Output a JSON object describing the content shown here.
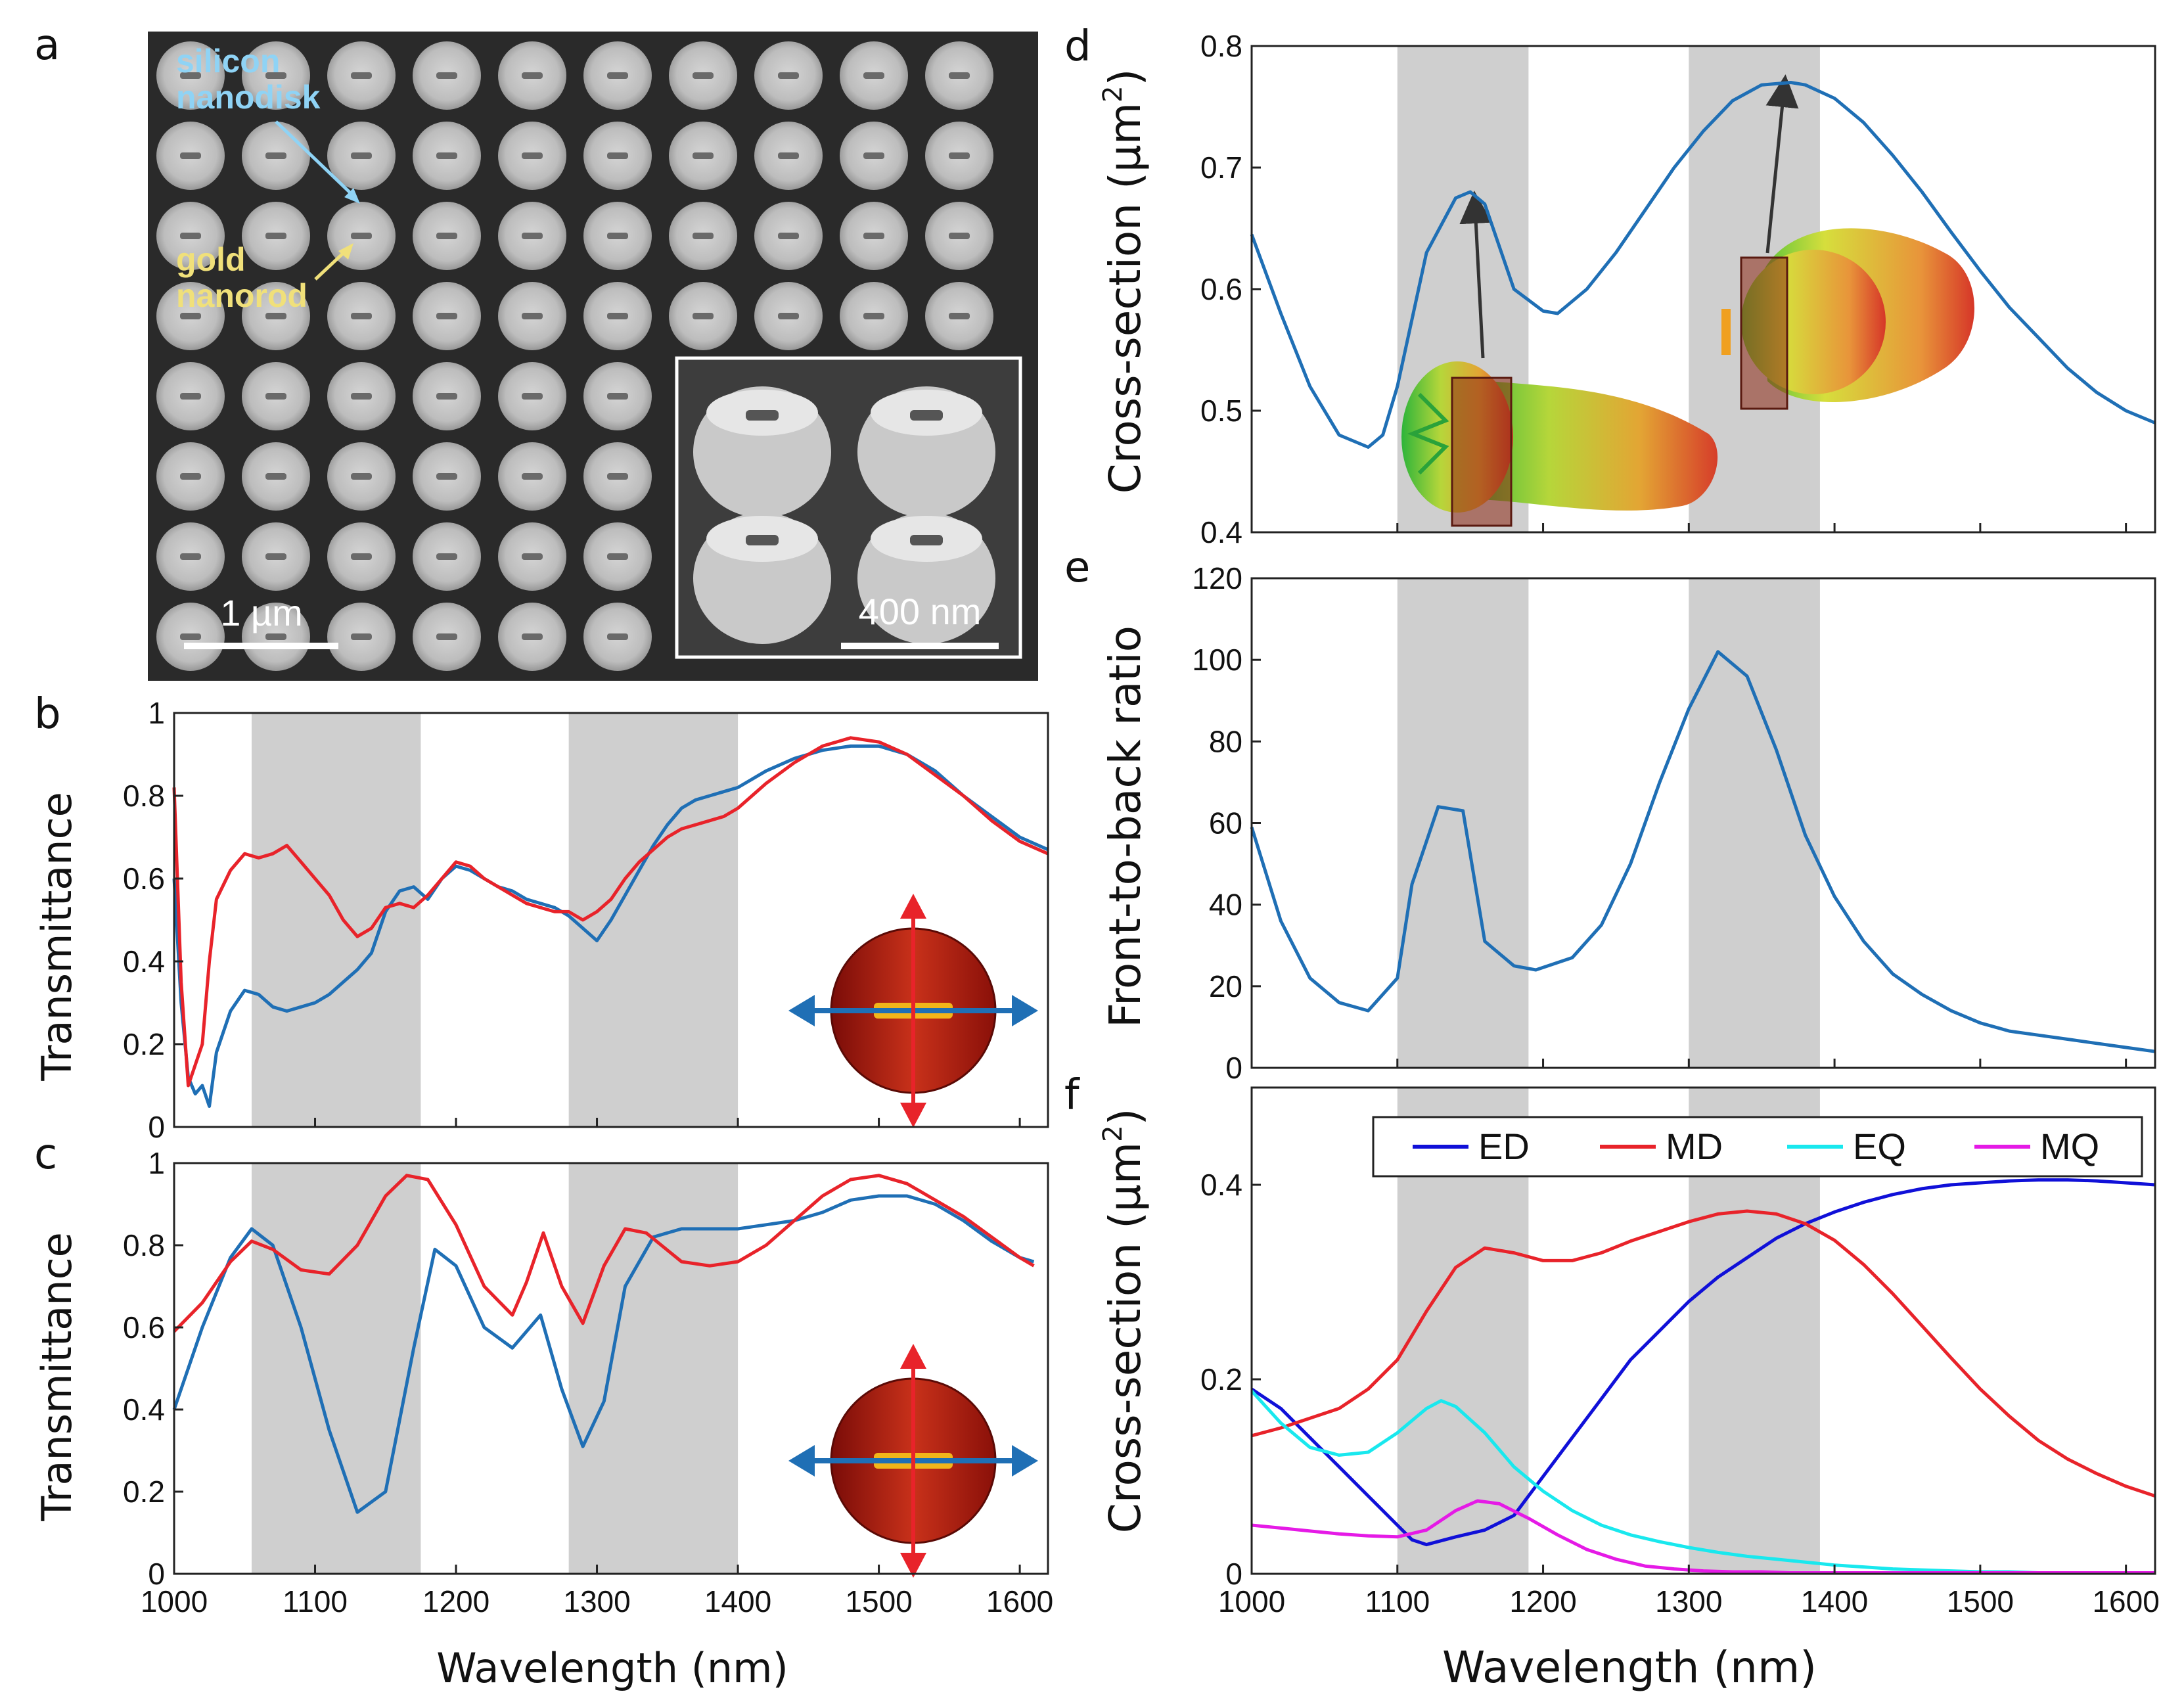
{
  "colors": {
    "blue": "#1f6fb5",
    "red": "#e8232a",
    "ED": "#1010d8",
    "MD": "#e8232a",
    "EQ": "#19e8ee",
    "MQ": "#e51ae6",
    "band": "#cfcfcf"
  },
  "panel_a": {
    "label": "a",
    "annotation_silicon": [
      "silicon",
      "nanodisk"
    ],
    "annotation_gold": [
      "gold",
      "nanorod"
    ],
    "scalebar_main": "1 µm",
    "scalebar_inset": "400 nm"
  },
  "chart_data": [
    {
      "id": "b",
      "label": "b",
      "type": "line",
      "title": "",
      "xlabel": "",
      "ylabel": "Transmittance",
      "xlim": [
        1000,
        1620
      ],
      "ylim": [
        0,
        1
      ],
      "xticks": [],
      "yticks": [
        0,
        0.2,
        0.4,
        0.6,
        0.8,
        1
      ],
      "ytick_labels": [
        "0",
        "0.2",
        "0.4",
        "0.6",
        "0.8",
        "1"
      ],
      "shaded_bands": [
        [
          1055,
          1175
        ],
        [
          1280,
          1400
        ]
      ],
      "series": [
        {
          "name": "blue",
          "color": "#1f6fb5",
          "x": [
            1000,
            1005,
            1010,
            1015,
            1020,
            1025,
            1030,
            1040,
            1050,
            1060,
            1070,
            1080,
            1090,
            1100,
            1110,
            1120,
            1130,
            1140,
            1150,
            1160,
            1170,
            1180,
            1190,
            1200,
            1210,
            1220,
            1230,
            1240,
            1250,
            1260,
            1270,
            1280,
            1290,
            1300,
            1310,
            1320,
            1330,
            1340,
            1350,
            1360,
            1370,
            1380,
            1390,
            1400,
            1420,
            1440,
            1460,
            1480,
            1500,
            1520,
            1540,
            1560,
            1580,
            1600,
            1620
          ],
          "y": [
            0.6,
            0.3,
            0.12,
            0.08,
            0.1,
            0.05,
            0.18,
            0.28,
            0.33,
            0.32,
            0.29,
            0.28,
            0.29,
            0.3,
            0.32,
            0.35,
            0.38,
            0.42,
            0.52,
            0.57,
            0.58,
            0.55,
            0.6,
            0.63,
            0.62,
            0.6,
            0.58,
            0.57,
            0.55,
            0.54,
            0.53,
            0.51,
            0.48,
            0.45,
            0.5,
            0.56,
            0.62,
            0.68,
            0.73,
            0.77,
            0.79,
            0.8,
            0.81,
            0.82,
            0.86,
            0.89,
            0.91,
            0.92,
            0.92,
            0.9,
            0.86,
            0.8,
            0.75,
            0.7,
            0.67
          ]
        },
        {
          "name": "red",
          "color": "#e8232a",
          "x": [
            1000,
            1005,
            1010,
            1015,
            1020,
            1025,
            1030,
            1040,
            1050,
            1060,
            1070,
            1080,
            1090,
            1100,
            1110,
            1120,
            1130,
            1140,
            1150,
            1160,
            1170,
            1180,
            1190,
            1200,
            1210,
            1220,
            1230,
            1240,
            1250,
            1260,
            1270,
            1280,
            1290,
            1300,
            1310,
            1320,
            1330,
            1340,
            1350,
            1360,
            1370,
            1380,
            1390,
            1400,
            1420,
            1440,
            1460,
            1480,
            1500,
            1520,
            1540,
            1560,
            1580,
            1600,
            1620
          ],
          "y": [
            0.82,
            0.35,
            0.1,
            0.15,
            0.2,
            0.4,
            0.55,
            0.62,
            0.66,
            0.65,
            0.66,
            0.68,
            0.64,
            0.6,
            0.56,
            0.5,
            0.46,
            0.48,
            0.53,
            0.54,
            0.53,
            0.56,
            0.6,
            0.64,
            0.63,
            0.6,
            0.58,
            0.56,
            0.54,
            0.53,
            0.52,
            0.52,
            0.5,
            0.52,
            0.55,
            0.6,
            0.64,
            0.67,
            0.7,
            0.72,
            0.73,
            0.74,
            0.75,
            0.77,
            0.83,
            0.88,
            0.92,
            0.94,
            0.93,
            0.9,
            0.85,
            0.8,
            0.74,
            0.69,
            0.66
          ]
        }
      ]
    },
    {
      "id": "c",
      "label": "c",
      "type": "line",
      "title": "",
      "xlabel": "Wavelength (nm)",
      "ylabel": "Transmittance",
      "xlim": [
        1000,
        1620
      ],
      "ylim": [
        0,
        1
      ],
      "xticks": [
        1000,
        1100,
        1200,
        1300,
        1400,
        1500,
        1600
      ],
      "xtick_labels": [
        "1000",
        "1100",
        "1200",
        "1300",
        "1400",
        "1500",
        "1600"
      ],
      "yticks": [
        0,
        0.2,
        0.4,
        0.6,
        0.8,
        1
      ],
      "ytick_labels": [
        "0",
        "0.2",
        "0.4",
        "0.6",
        "0.8",
        "1"
      ],
      "shaded_bands": [
        [
          1055,
          1175
        ],
        [
          1280,
          1400
        ]
      ],
      "series": [
        {
          "name": "blue",
          "color": "#1f6fb5",
          "x": [
            1000,
            1020,
            1040,
            1055,
            1070,
            1090,
            1110,
            1130,
            1150,
            1170,
            1185,
            1200,
            1220,
            1240,
            1260,
            1275,
            1290,
            1305,
            1320,
            1340,
            1360,
            1380,
            1400,
            1420,
            1440,
            1460,
            1480,
            1500,
            1520,
            1540,
            1560,
            1580,
            1600,
            1610
          ],
          "y": [
            0.4,
            0.6,
            0.77,
            0.84,
            0.8,
            0.6,
            0.35,
            0.15,
            0.2,
            0.55,
            0.79,
            0.75,
            0.6,
            0.55,
            0.63,
            0.45,
            0.31,
            0.42,
            0.7,
            0.82,
            0.84,
            0.84,
            0.84,
            0.85,
            0.86,
            0.88,
            0.91,
            0.92,
            0.92,
            0.9,
            0.86,
            0.81,
            0.77,
            0.76
          ]
        },
        {
          "name": "red",
          "color": "#e8232a",
          "x": [
            1000,
            1020,
            1040,
            1055,
            1070,
            1090,
            1110,
            1130,
            1150,
            1165,
            1180,
            1200,
            1220,
            1240,
            1250,
            1262,
            1275,
            1290,
            1305,
            1320,
            1335,
            1360,
            1380,
            1400,
            1420,
            1440,
            1460,
            1480,
            1500,
            1520,
            1540,
            1560,
            1580,
            1600,
            1610
          ],
          "y": [
            0.59,
            0.66,
            0.76,
            0.81,
            0.79,
            0.74,
            0.73,
            0.8,
            0.92,
            0.97,
            0.96,
            0.85,
            0.7,
            0.63,
            0.71,
            0.83,
            0.7,
            0.61,
            0.75,
            0.84,
            0.83,
            0.76,
            0.75,
            0.76,
            0.8,
            0.86,
            0.92,
            0.96,
            0.97,
            0.95,
            0.91,
            0.87,
            0.82,
            0.77,
            0.75
          ]
        }
      ]
    },
    {
      "id": "d",
      "label": "d",
      "type": "line",
      "title": "",
      "xlabel": "",
      "ylabel": "Cross-section (µm2)",
      "ylabel_parts": {
        "main": "Cross-section (µm",
        "sup": "2",
        "end": ")"
      },
      "xlim": [
        1000,
        1620
      ],
      "ylim": [
        0.4,
        0.8
      ],
      "yticks": [
        0.4,
        0.5,
        0.6,
        0.7,
        0.8
      ],
      "ytick_labels": [
        "0.4",
        "0.5",
        "0.6",
        "0.7",
        "0.8"
      ],
      "shaded_bands": [
        [
          1100,
          1190
        ],
        [
          1300,
          1390
        ]
      ],
      "series": [
        {
          "name": "total",
          "color": "#1f6fb5",
          "x": [
            1000,
            1020,
            1040,
            1060,
            1080,
            1090,
            1100,
            1120,
            1140,
            1150,
            1160,
            1180,
            1200,
            1210,
            1230,
            1250,
            1270,
            1290,
            1310,
            1330,
            1350,
            1370,
            1380,
            1400,
            1420,
            1440,
            1460,
            1480,
            1500,
            1520,
            1540,
            1560,
            1580,
            1600,
            1620
          ],
          "y": [
            0.645,
            0.58,
            0.52,
            0.48,
            0.47,
            0.48,
            0.52,
            0.63,
            0.675,
            0.68,
            0.67,
            0.6,
            0.582,
            0.58,
            0.6,
            0.63,
            0.665,
            0.7,
            0.73,
            0.755,
            0.768,
            0.77,
            0.768,
            0.757,
            0.737,
            0.71,
            0.68,
            0.647,
            0.615,
            0.585,
            0.56,
            0.535,
            0.515,
            0.5,
            0.49
          ]
        }
      ]
    },
    {
      "id": "e",
      "label": "e",
      "type": "line",
      "title": "",
      "xlabel": "",
      "ylabel": "Front-to-back ratio",
      "xlim": [
        1000,
        1620
      ],
      "ylim": [
        0,
        120
      ],
      "yticks": [
        0,
        20,
        40,
        60,
        80,
        100,
        120
      ],
      "ytick_labels": [
        "0",
        "20",
        "40",
        "60",
        "80",
        "100",
        "120"
      ],
      "shaded_bands": [
        [
          1100,
          1190
        ],
        [
          1300,
          1390
        ]
      ],
      "series": [
        {
          "name": "FBR",
          "color": "#1f6fb5",
          "x": [
            1000,
            1020,
            1040,
            1060,
            1080,
            1100,
            1110,
            1128,
            1145,
            1160,
            1180,
            1195,
            1220,
            1240,
            1260,
            1280,
            1300,
            1320,
            1340,
            1360,
            1380,
            1400,
            1420,
            1440,
            1460,
            1480,
            1500,
            1520,
            1540,
            1560,
            1580,
            1600,
            1620
          ],
          "y": [
            59,
            36,
            22,
            16,
            14,
            22,
            45,
            64,
            63,
            31,
            25,
            24,
            27,
            35,
            50,
            70,
            88,
            102,
            96,
            78,
            57,
            42,
            31,
            23,
            18,
            14,
            11,
            9,
            8,
            7,
            6,
            5,
            4
          ]
        }
      ]
    },
    {
      "id": "f",
      "label": "f",
      "type": "line",
      "title": "",
      "xlabel": "Wavelength (nm)",
      "ylabel": "Cross-section (µm2)",
      "ylabel_parts": {
        "main": "Cross-section (µm",
        "sup": "2",
        "end": ")"
      },
      "xlim": [
        1000,
        1620
      ],
      "ylim": [
        0,
        0.5
      ],
      "xticks": [
        1000,
        1100,
        1200,
        1300,
        1400,
        1500,
        1600
      ],
      "xtick_labels": [
        "1000",
        "1100",
        "1200",
        "1300",
        "1400",
        "1500",
        "1600"
      ],
      "yticks": [
        0,
        0.2,
        0.4
      ],
      "ytick_labels": [
        "0",
        "0.2",
        "0.4"
      ],
      "shaded_bands": [
        [
          1100,
          1190
        ],
        [
          1300,
          1390
        ]
      ],
      "legend": {
        "placement": "top-right",
        "entries": [
          "ED",
          "MD",
          "EQ",
          "MQ"
        ]
      },
      "series": [
        {
          "name": "ED",
          "color": "#1010d8",
          "x": [
            1000,
            1020,
            1040,
            1060,
            1080,
            1100,
            1110,
            1120,
            1140,
            1160,
            1180,
            1200,
            1220,
            1240,
            1260,
            1280,
            1300,
            1320,
            1340,
            1360,
            1380,
            1400,
            1420,
            1440,
            1460,
            1480,
            1500,
            1520,
            1540,
            1560,
            1580,
            1600,
            1620
          ],
          "y": [
            0.19,
            0.17,
            0.14,
            0.11,
            0.08,
            0.05,
            0.035,
            0.03,
            0.038,
            0.045,
            0.06,
            0.1,
            0.14,
            0.18,
            0.22,
            0.25,
            0.28,
            0.305,
            0.325,
            0.345,
            0.36,
            0.372,
            0.382,
            0.39,
            0.396,
            0.4,
            0.402,
            0.404,
            0.405,
            0.405,
            0.404,
            0.402,
            0.4
          ]
        },
        {
          "name": "MD",
          "color": "#e8232a",
          "x": [
            1000,
            1020,
            1040,
            1060,
            1080,
            1100,
            1120,
            1140,
            1160,
            1180,
            1200,
            1220,
            1240,
            1260,
            1280,
            1300,
            1320,
            1340,
            1360,
            1380,
            1400,
            1420,
            1440,
            1460,
            1480,
            1500,
            1520,
            1540,
            1560,
            1580,
            1600,
            1620
          ],
          "y": [
            0.142,
            0.15,
            0.16,
            0.17,
            0.19,
            0.22,
            0.27,
            0.315,
            0.335,
            0.33,
            0.322,
            0.322,
            0.33,
            0.342,
            0.352,
            0.362,
            0.37,
            0.373,
            0.37,
            0.36,
            0.343,
            0.318,
            0.288,
            0.255,
            0.222,
            0.19,
            0.162,
            0.137,
            0.118,
            0.103,
            0.09,
            0.08
          ]
        },
        {
          "name": "EQ",
          "color": "#19e8ee",
          "x": [
            1000,
            1020,
            1040,
            1060,
            1080,
            1100,
            1120,
            1130,
            1140,
            1160,
            1180,
            1200,
            1220,
            1240,
            1260,
            1280,
            1300,
            1320,
            1340,
            1360,
            1380,
            1400,
            1420,
            1440,
            1460,
            1480,
            1500,
            1520,
            1540,
            1560,
            1580,
            1600,
            1620
          ],
          "y": [
            0.188,
            0.155,
            0.13,
            0.122,
            0.125,
            0.145,
            0.17,
            0.178,
            0.172,
            0.145,
            0.11,
            0.085,
            0.065,
            0.05,
            0.04,
            0.033,
            0.027,
            0.022,
            0.018,
            0.015,
            0.012,
            0.009,
            0.007,
            0.005,
            0.004,
            0.003,
            0.002,
            0.002,
            0.001,
            0.001,
            0.001,
            0.001,
            0.001
          ]
        },
        {
          "name": "MQ",
          "color": "#e51ae6",
          "x": [
            1000,
            1020,
            1040,
            1060,
            1080,
            1100,
            1120,
            1140,
            1155,
            1170,
            1190,
            1210,
            1230,
            1250,
            1270,
            1290,
            1310,
            1330,
            1350,
            1370,
            1400,
            1440,
            1480,
            1520,
            1560,
            1600,
            1620
          ],
          "y": [
            0.05,
            0.047,
            0.044,
            0.041,
            0.039,
            0.038,
            0.045,
            0.065,
            0.075,
            0.072,
            0.057,
            0.04,
            0.025,
            0.015,
            0.008,
            0.005,
            0.003,
            0.002,
            0.002,
            0.001,
            0.001,
            0.001,
            0.001,
            0.001,
            0.001,
            0.001,
            0.001
          ]
        }
      ]
    }
  ]
}
